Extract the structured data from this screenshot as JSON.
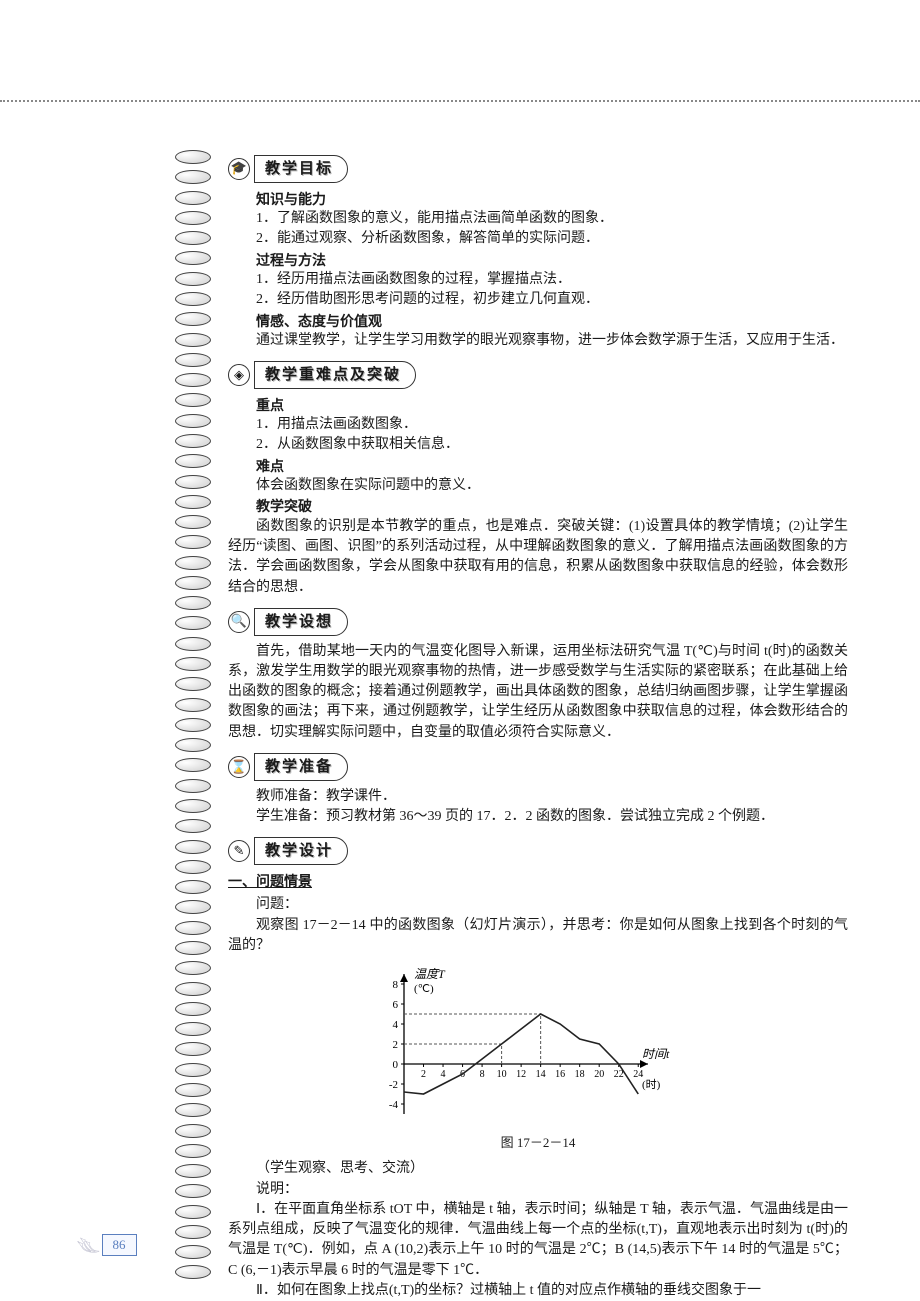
{
  "page_number": "86",
  "sec1": {
    "title": "教学目标",
    "h1": "知识与能力",
    "h1_items": [
      "1．了解函数图象的意义，能用描点法画简单函数的图象．",
      "2．能通过观察、分析函数图象，解答简单的实际问题．"
    ],
    "h2": "过程与方法",
    "h2_items": [
      "1．经历用描点法画函数图象的过程，掌握描点法．",
      "2．经历借助图形思考问题的过程，初步建立几何直观．"
    ],
    "h3": "情感、态度与价值观",
    "h3_para": "通过课堂教学，让学生学习用数学的眼光观察事物，进一步体会数学源于生活，又应用于生活．"
  },
  "sec2": {
    "title": "教学重难点及突破",
    "h1": "重点",
    "h1_items": [
      "1．用描点法画函数图象．",
      "2．从函数图象中获取相关信息．"
    ],
    "h2": "难点",
    "h2_para": "体会函数图象在实际问题中的意义．",
    "h3": "教学突破",
    "h3_para": "函数图象的识别是本节教学的重点，也是难点．突破关键：(1)设置具体的教学情境；(2)让学生经历“读图、画图、识图”的系列活动过程，从中理解函数图象的意义．了解用描点法画函数图象的方法．学会画函数图象，学会从图象中获取有用的信息，积累从函数图象中获取信息的经验，体会数形结合的思想．"
  },
  "sec3": {
    "title": "教学设想",
    "para": "首先，借助某地一天内的气温变化图导入新课，运用坐标法研究气温 T(℃)与时间 t(时)的函数关系，激发学生用数学的眼光观察事物的热情，进一步感受数学与生活实际的紧密联系；在此基础上给出函数的图象的概念；接着通过例题教学，画出具体函数的图象，总结归纳画图步骤，让学生掌握函数图象的画法；再下来，通过例题教学，让学生经历从函数图象中获取信息的过程，体会数形结合的思想．切实理解实际问题中，自变量的取值必须符合实际意义．"
  },
  "sec4": {
    "title": "教学准备",
    "teacher": "教师准备：教学课件．",
    "student": "学生准备：预习教材第 36～39 页的 17．2．2 函数的图象．尝试独立完成 2 个例题．"
  },
  "sec5": {
    "title": "教学设计",
    "h1": "一、问题情景",
    "h2": "问题：",
    "q_para": "观察图 17－2－14 中的函数图象（幻灯片演示），并思考：你是如何从图象上找到各个时刻的气温的？",
    "student_note": "（学生观察、思考、交流）",
    "explain_label": "说明：",
    "p1": "Ⅰ．在平面直角坐标系 tOT 中，横轴是 t 轴，表示时间；纵轴是 T 轴，表示气温．气温曲线是由一系列点组成，反映了气温变化的规律．气温曲线上每一个点的坐标(t,T)，直观地表示出时刻为 t(时)的气温是 T(℃)．例如，点 A (10,2)表示上午 10 时的气温是 2℃；B (14,5)表示下午 14 时的气温是 5℃；C (6,－1)表示早晨 6 时的气温是零下 1℃．",
    "p2": "Ⅱ．如何在图象上找点(t,T)的坐标？过横轴上 t 值的对应点作横轴的垂线交图象于一"
  },
  "chart": {
    "type": "line",
    "caption": "图 17－2－14",
    "y_label": "温度T",
    "y_unit": "(℃)",
    "x_label": "时间t",
    "x_unit": "(时)",
    "x_ticks": [
      2,
      4,
      6,
      8,
      10,
      12,
      14,
      16,
      18,
      20,
      22,
      24
    ],
    "y_ticks": [
      -4,
      -2,
      0,
      2,
      4,
      6,
      8
    ],
    "x_range": [
      0,
      25
    ],
    "y_range": [
      -5,
      9
    ],
    "points": [
      [
        0,
        -2.8
      ],
      [
        2,
        -3
      ],
      [
        4,
        -2
      ],
      [
        6,
        -1
      ],
      [
        8,
        0.5
      ],
      [
        10,
        2
      ],
      [
        12,
        3.5
      ],
      [
        14,
        5
      ],
      [
        16,
        4
      ],
      [
        18,
        2.5
      ],
      [
        20,
        2
      ],
      [
        22,
        0
      ],
      [
        24,
        -3
      ]
    ],
    "colors": {
      "line": "#222222",
      "grid": "#555555",
      "axis": "#000000",
      "dash": "#555555",
      "bg": "#ffffff"
    },
    "line_width": 1.6,
    "reference_lines": [
      {
        "from": [
          10,
          0
        ],
        "to": [
          10,
          2
        ],
        "dash": true
      },
      {
        "from": [
          0,
          2
        ],
        "to": [
          10,
          2
        ],
        "dash": true
      },
      {
        "from": [
          14,
          0
        ],
        "to": [
          14,
          5
        ],
        "dash": true
      },
      {
        "from": [
          0,
          5
        ],
        "to": [
          14,
          5
        ],
        "dash": true
      }
    ]
  }
}
